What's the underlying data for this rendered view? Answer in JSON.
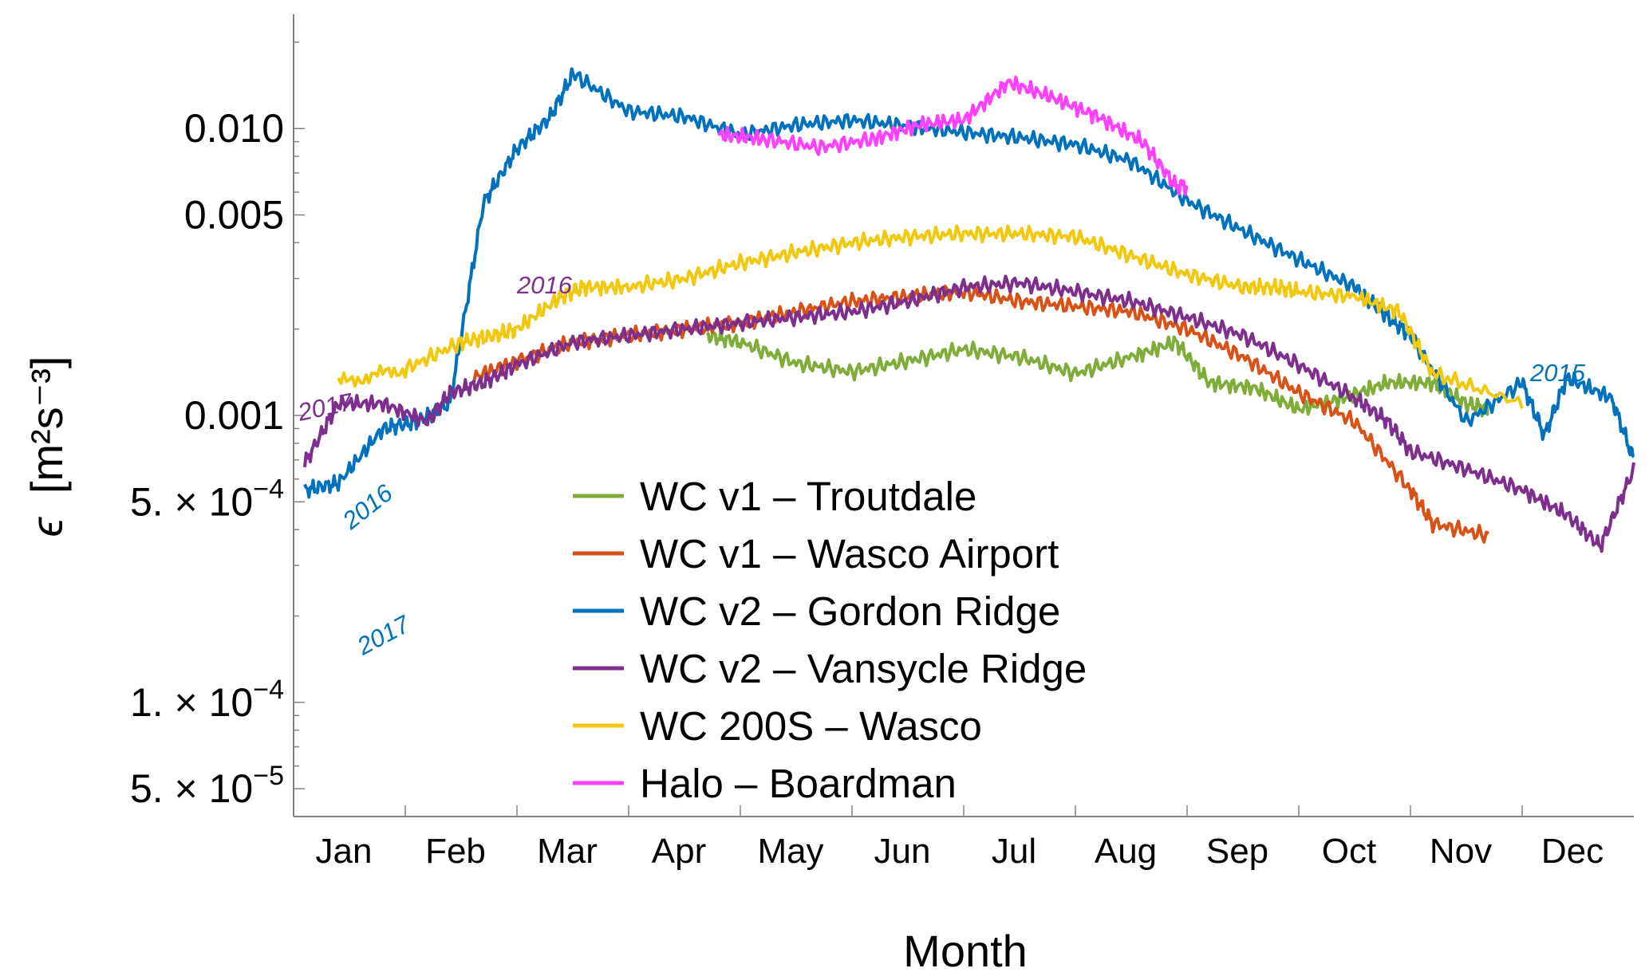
{
  "chart_data": {
    "type": "line",
    "xlabel": "Month",
    "ylabel": {
      "symbol": "ϵ",
      "unit": "[m²s⁻³]"
    },
    "yscale": "log",
    "ylim": [
      4e-05,
      0.025
    ],
    "categories": [
      "Jan",
      "Feb",
      "Mar",
      "Apr",
      "May",
      "Jun",
      "Jul",
      "Aug",
      "Sep",
      "Oct",
      "Nov",
      "Dec"
    ],
    "yticks": [
      {
        "value": 0.01,
        "text": "0.010"
      },
      {
        "value": 0.005,
        "text": "0.005"
      },
      {
        "value": 0.001,
        "text": "0.001"
      },
      {
        "value": 0.0005,
        "mantissa": "5. × 10",
        "exp": "−4"
      },
      {
        "value": 0.0001,
        "mantissa": "1. × 10",
        "exp": "−4"
      },
      {
        "value": 5e-05,
        "mantissa": "5. × 10",
        "exp": "−5"
      }
    ],
    "legend_position": "bottom-center",
    "series": [
      {
        "name": "WC v1 – Troutdale",
        "color": "#7fad3a",
        "x": [
          3.7,
          4.0,
          4.5,
          5.0,
          5.5,
          6.0,
          6.5,
          7.0,
          7.5,
          7.9,
          8.2,
          8.6,
          9.0,
          9.4,
          9.8,
          10.2,
          10.5,
          10.7
        ],
        "y": [
          0.0019,
          0.0018,
          0.00152,
          0.00142,
          0.00155,
          0.0017,
          0.0016,
          0.0014,
          0.0016,
          0.0018,
          0.0013,
          0.00125,
          0.00105,
          0.00115,
          0.0013,
          0.0013,
          0.0011,
          0.00105
        ]
      },
      {
        "name": "WC v1 – Wasco Airport",
        "color": "#d85218",
        "x": [
          1.6,
          2.0,
          2.5,
          3.0,
          3.5,
          4.0,
          4.5,
          5.0,
          5.5,
          6.0,
          6.5,
          7.0,
          7.5,
          8.0,
          8.5,
          9.0,
          9.5,
          10.0,
          10.2,
          10.7
        ],
        "y": [
          0.00135,
          0.00155,
          0.0018,
          0.0019,
          0.002,
          0.0021,
          0.0023,
          0.0025,
          0.0026,
          0.0027,
          0.0025,
          0.0024,
          0.0023,
          0.002,
          0.0016,
          0.0012,
          0.00095,
          0.00055,
          0.00042,
          0.00038
        ]
      },
      {
        "name": "WC v2 – Gordon Ridge",
        "color": "#0072bd",
        "x": [
          0.1,
          0.4,
          0.8,
          1.1,
          1.4,
          1.7,
          2.0,
          2.3,
          2.5,
          3.0,
          3.5,
          4.0,
          4.5,
          5.0,
          5.5,
          6.0,
          6.5,
          7.0,
          7.5,
          8.0,
          8.5,
          9.0,
          9.5,
          9.8,
          10.0,
          10.5,
          11.0,
          11.2,
          11.4,
          11.8,
          12.0
        ],
        "y": [
          0.00055,
          0.00058,
          0.0009,
          0.00095,
          0.0011,
          0.0055,
          0.0085,
          0.011,
          0.0155,
          0.0115,
          0.011,
          0.0095,
          0.0103,
          0.0107,
          0.0102,
          0.0097,
          0.0093,
          0.0088,
          0.0077,
          0.0056,
          0.0044,
          0.0035,
          0.0028,
          0.0022,
          0.0019,
          0.00095,
          0.0013,
          0.00085,
          0.00135,
          0.00115,
          0.0007
        ]
      },
      {
        "name": "WC v2 – Vansycle Ridge",
        "color": "#7e2f8e",
        "x": [
          0.1,
          0.4,
          0.8,
          1.2,
          1.4,
          1.7,
          2.0,
          2.5,
          3.0,
          3.5,
          4.0,
          4.5,
          5.0,
          5.5,
          6.0,
          6.5,
          7.0,
          7.5,
          8.0,
          8.5,
          9.0,
          9.5,
          9.8,
          10.0,
          10.5,
          11.0,
          11.4,
          11.7,
          12.0
        ],
        "y": [
          0.00068,
          0.0011,
          0.0011,
          0.00095,
          0.0012,
          0.0013,
          0.0015,
          0.0018,
          0.0019,
          0.002,
          0.0021,
          0.0022,
          0.0023,
          0.0025,
          0.0028,
          0.0029,
          0.0027,
          0.0025,
          0.0022,
          0.0019,
          0.0015,
          0.00115,
          0.00095,
          0.00075,
          0.00065,
          0.00055,
          0.00045,
          0.00035,
          0.00065
        ]
      },
      {
        "name": "WC 200S – Wasco",
        "color": "#f2c80f",
        "x": [
          0.4,
          1.0,
          1.5,
          1.8,
          2.0,
          2.4,
          2.6,
          3.0,
          3.5,
          4.0,
          4.5,
          5.0,
          5.5,
          6.0,
          6.5,
          7.0,
          7.5,
          8.0,
          8.5,
          8.8,
          9.0,
          9.5,
          9.9,
          10.2,
          11.0
        ],
        "y": [
          0.0013,
          0.00145,
          0.0018,
          0.0019,
          0.002,
          0.0026,
          0.0028,
          0.0028,
          0.003,
          0.0034,
          0.0037,
          0.004,
          0.0042,
          0.0043,
          0.0043,
          0.0042,
          0.0036,
          0.0031,
          0.0028,
          0.0028,
          0.0027,
          0.0026,
          0.0023,
          0.0014,
          0.0011
        ]
      },
      {
        "name": "Halo – Boardman",
        "color": "#ff40ff",
        "x": [
          3.8,
          4.2,
          4.7,
          5.2,
          5.6,
          6.0,
          6.4,
          6.8,
          7.2,
          7.6,
          7.9,
          8.0
        ],
        "y": [
          0.0095,
          0.0092,
          0.0086,
          0.0092,
          0.0103,
          0.0107,
          0.0145,
          0.0128,
          0.011,
          0.009,
          0.0063,
          0.0063
        ]
      }
    ],
    "annotations": [
      {
        "text": "2016",
        "color": "#7e2f8e"
      },
      {
        "text": "2017",
        "color": "#7e2f8e"
      },
      {
        "text": "2016",
        "color": "#0072bd"
      },
      {
        "text": "2017",
        "color": "#0072bd"
      },
      {
        "text": "2015",
        "color": "#0072bd"
      }
    ]
  }
}
